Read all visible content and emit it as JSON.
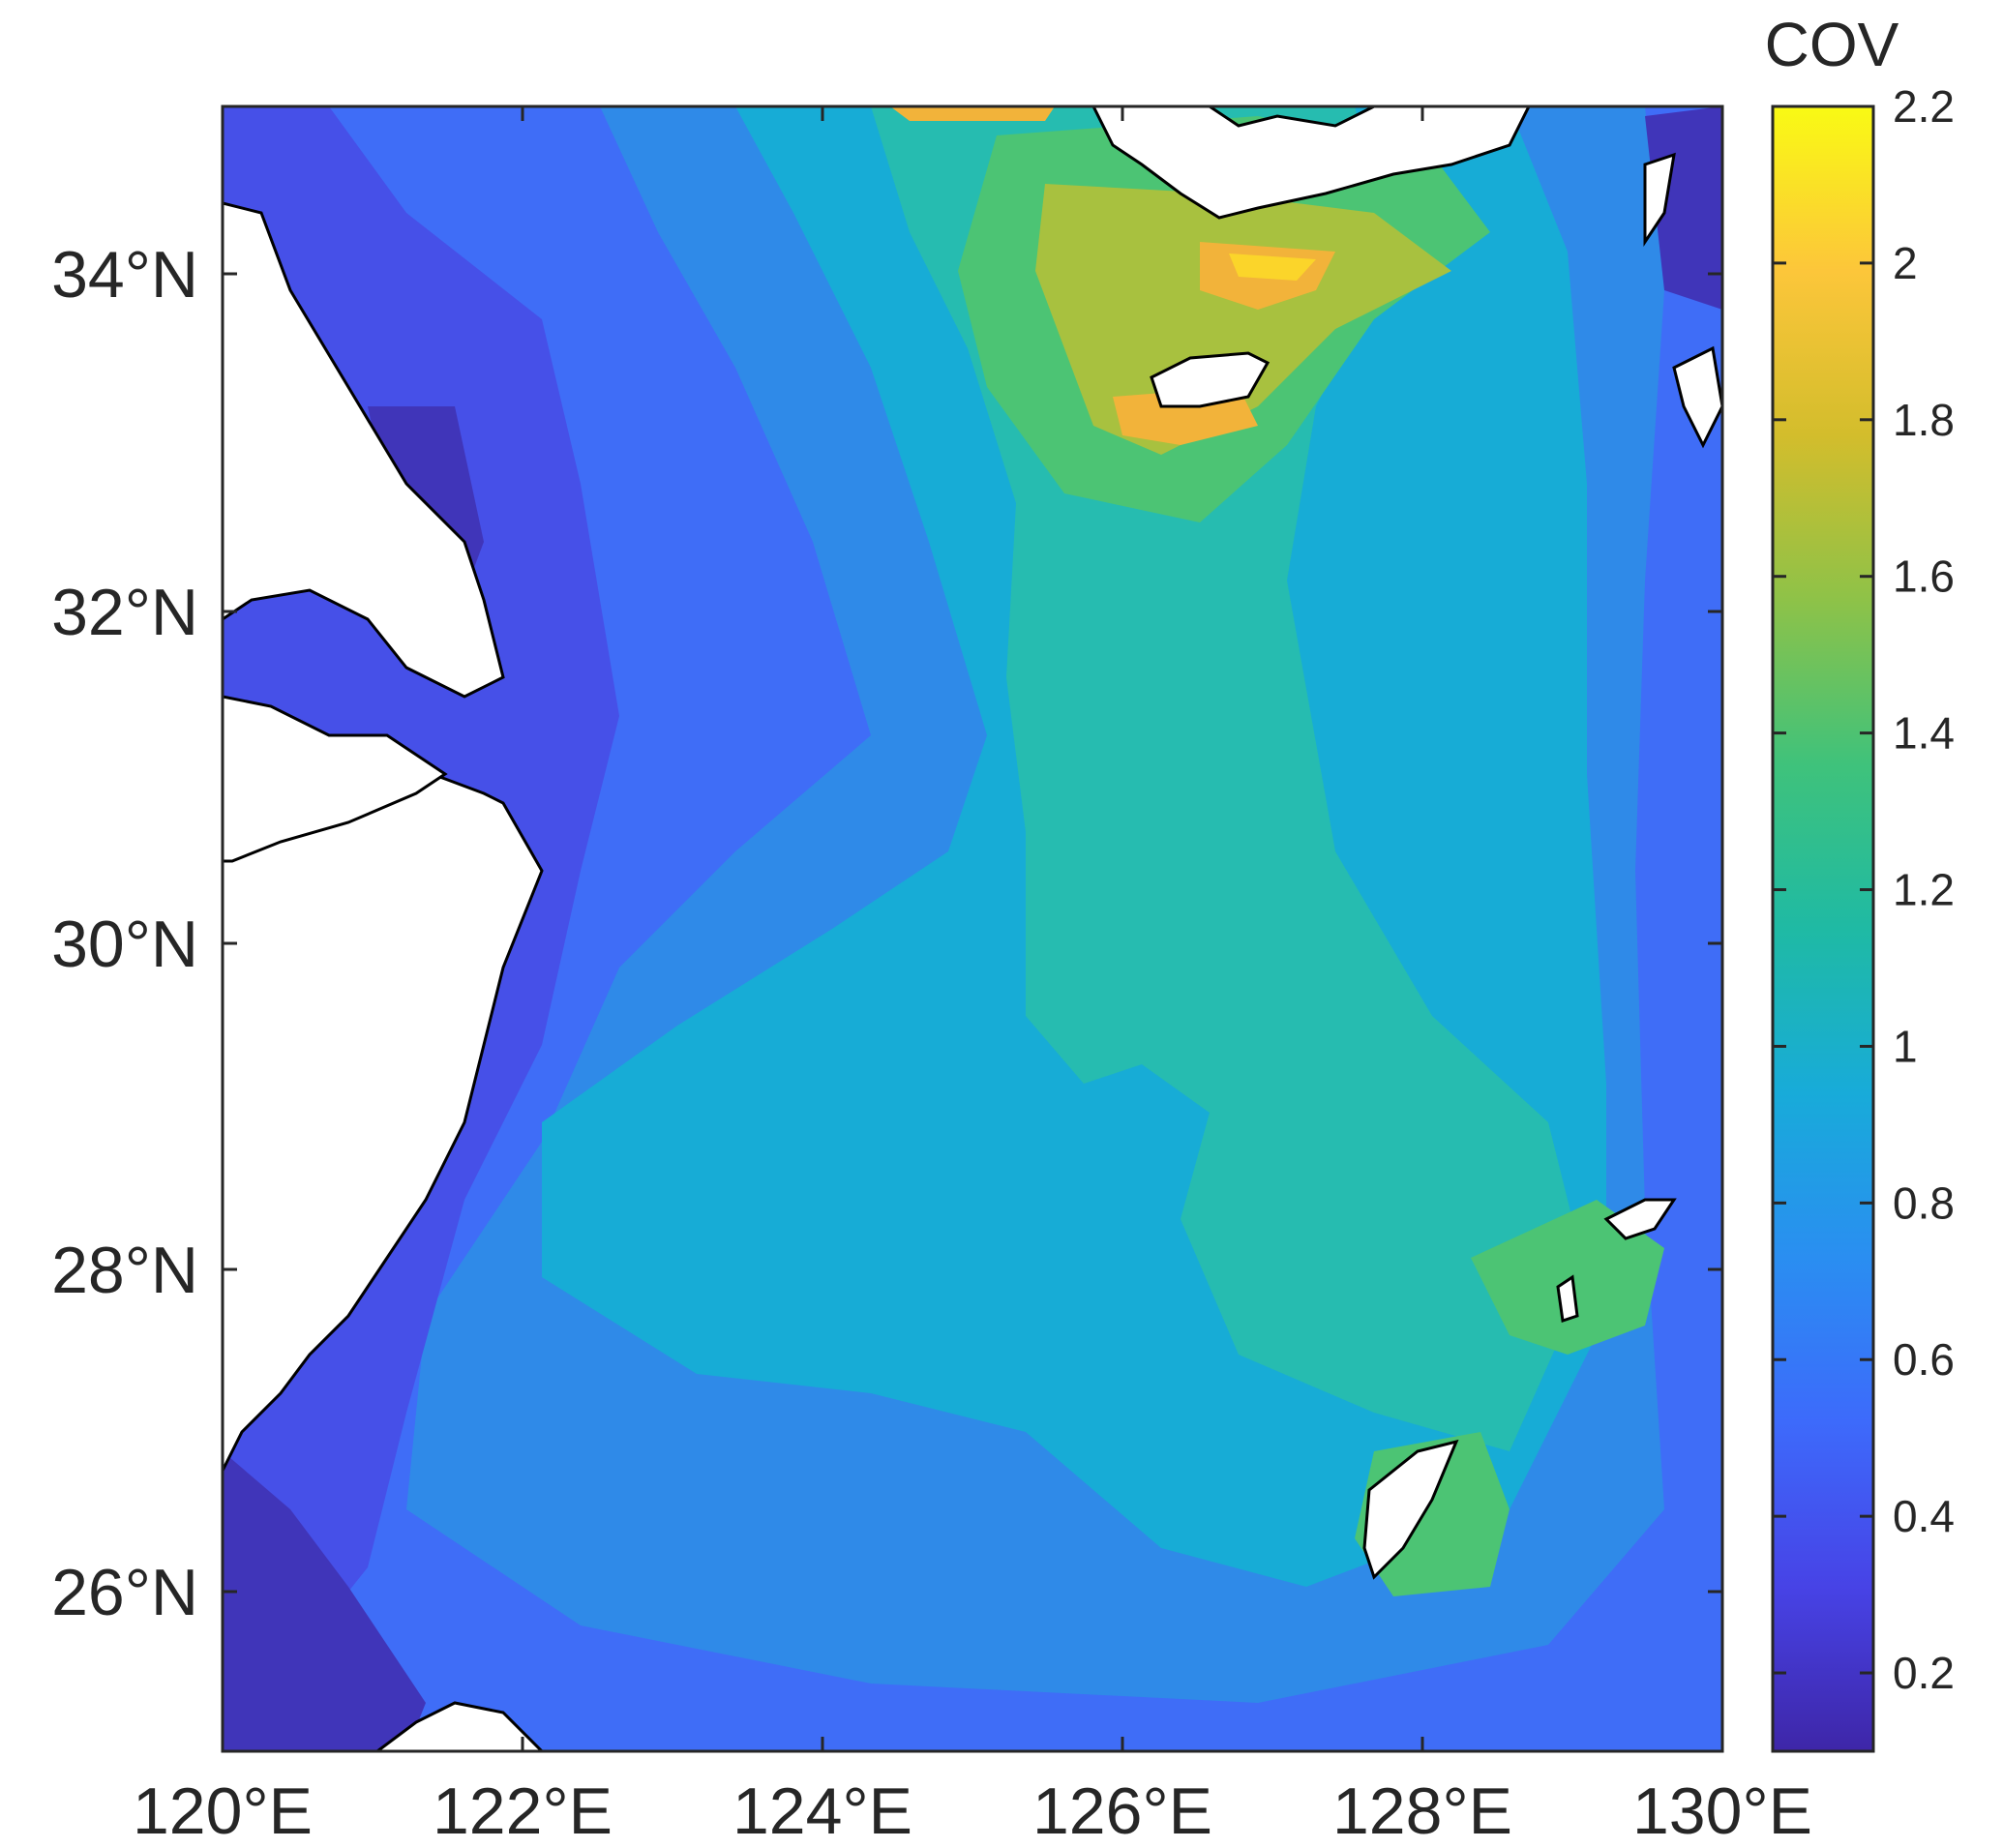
{
  "map": {
    "x_ticks": [
      "120°E",
      "122°E",
      "124°E",
      "126°E",
      "128°E",
      "130°E"
    ],
    "y_ticks": [
      "34°N",
      "32°N",
      "30°N",
      "28°N",
      "26°N"
    ],
    "colorbar": {
      "title": "COV",
      "ticks": [
        "2.2",
        "2",
        "1.8",
        "1.6",
        "1.4",
        "1.2",
        "1",
        "0.8",
        "0.6",
        "0.4",
        "0.2"
      ],
      "range": [
        0.1,
        2.2
      ],
      "colormap": [
        "#3e26a8",
        "#4743e6",
        "#3d6afb",
        "#2a8ef1",
        "#18abd9",
        "#1fbaa4",
        "#3fc27b",
        "#8ec248",
        "#d3bd2c",
        "#fcc63a",
        "#f9fa14"
      ]
    },
    "extent": {
      "lon": [
        120,
        130
      ],
      "lat": [
        25,
        35
      ]
    },
    "colors": {
      "land": "#ffffff",
      "coast": "#000000",
      "sea_base": "#3f6df7",
      "level_0_2": "#4035b9",
      "level_0_4": "#4650e8",
      "level_0_6": "#3d6af6",
      "level_0_8": "#2f8ae8",
      "level_1_0": "#17acd6",
      "level_1_2": "#26bcb0",
      "level_1_4": "#4cc474",
      "level_1_6": "#a8c13f",
      "level_1_8": "#f2b33a",
      "level_2_0": "#fbd52a"
    }
  }
}
